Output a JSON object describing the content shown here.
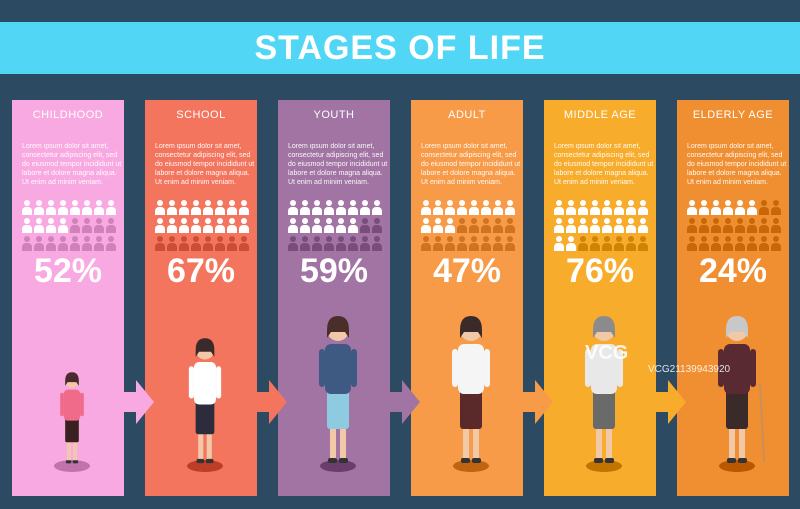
{
  "title": "STAGES OF LIFE",
  "description": "Lorem ipsum dolor sit amet, consectetur adipiscing elit, sed do eiusmod tempor incididunt ut labore et dolore magna aliqua. Ut enim ad minim veniam.",
  "stages": [
    {
      "label": "CHILDHOOD",
      "percent": "52%",
      "value": 52,
      "color": "#f9a9e2",
      "icon": "girl-child-figure-icon"
    },
    {
      "label": "SCHOOL",
      "percent": "67%",
      "value": 67,
      "color": "#f3755e",
      "icon": "schoolgirl-figure-icon"
    },
    {
      "label": "YOUTH",
      "percent": "59%",
      "value": 59,
      "color": "#a174a3",
      "icon": "young-woman-figure-icon"
    },
    {
      "label": "ADULT",
      "percent": "47%",
      "value": 47,
      "color": "#f79b48",
      "icon": "adult-woman-figure-icon"
    },
    {
      "label": "MIDDLE AGE",
      "percent": "76%",
      "value": 76,
      "color": "#f8ac2c",
      "icon": "middle-aged-woman-figure-icon"
    },
    {
      "label": "ELDERLY AGE",
      "percent": "24%",
      "value": 24,
      "color": "#f08f31",
      "icon": "elderly-woman-figure-icon"
    }
  ],
  "watermark": {
    "logo": "VCG",
    "id": "VCG21139943920"
  }
}
